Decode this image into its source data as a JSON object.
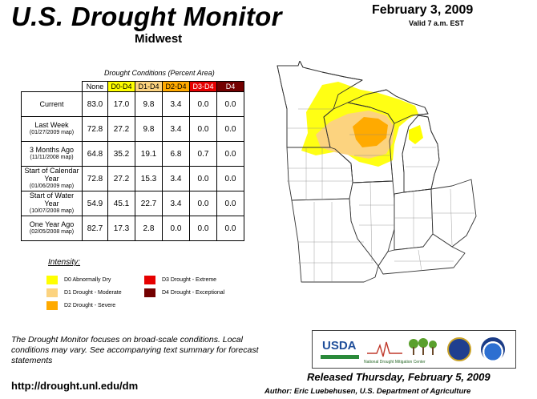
{
  "header": {
    "title": "U.S. Drought Monitor",
    "region": "Midwest",
    "date": "February 3, 2009",
    "valid": "Valid 7 a.m. EST"
  },
  "table": {
    "caption": "Drought Conditions (Percent Area)",
    "columns": [
      "None",
      "D0-D4",
      "D1-D4",
      "D2-D4",
      "D3-D4",
      "D4"
    ],
    "rows": [
      {
        "label": "Current",
        "sub": "",
        "values": [
          "83.0",
          "17.0",
          "9.8",
          "3.4",
          "0.0",
          "0.0"
        ]
      },
      {
        "label": "Last Week",
        "sub": "(01/27/2009 map)",
        "values": [
          "72.8",
          "27.2",
          "9.8",
          "3.4",
          "0.0",
          "0.0"
        ]
      },
      {
        "label": "3 Months Ago",
        "sub": "(11/11/2008 map)",
        "values": [
          "64.8",
          "35.2",
          "19.1",
          "6.8",
          "0.7",
          "0.0"
        ]
      },
      {
        "label": "Start of Calendar Year",
        "sub": "(01/06/2009 map)",
        "values": [
          "72.8",
          "27.2",
          "15.3",
          "3.4",
          "0.0",
          "0.0"
        ]
      },
      {
        "label": "Start of Water Year",
        "sub": "(10/07/2008 map)",
        "values": [
          "54.9",
          "45.1",
          "22.7",
          "3.4",
          "0.0",
          "0.0"
        ]
      },
      {
        "label": "One Year Ago",
        "sub": "(02/05/2008 map)",
        "values": [
          "82.7",
          "17.3",
          "2.8",
          "0.0",
          "0.0",
          "0.0"
        ]
      }
    ]
  },
  "legend": {
    "title": "Intensity:",
    "items": [
      {
        "label": "D0 Abnormally Dry",
        "color": "#ffff00"
      },
      {
        "label": "D1 Drought - Moderate",
        "color": "#fcd37f"
      },
      {
        "label": "D2 Drought - Severe",
        "color": "#ffaa00"
      },
      {
        "label": "D3 Drought - Extreme",
        "color": "#e60000"
      },
      {
        "label": "D4 Drought - Exceptional",
        "color": "#730000"
      }
    ]
  },
  "footer": {
    "note": "The Drought Monitor focuses on broad-scale conditions. Local conditions may vary. See accompanying text summary for forecast statements",
    "url": "http://drought.unl.edu/dm",
    "released": "Released Thursday, February 5, 2009",
    "author": "Author: Eric Luebehusen, U.S. Department of Agriculture"
  },
  "logos": {
    "usda": "USDA",
    "ndmc": "National Drought Mitigation Center"
  }
}
